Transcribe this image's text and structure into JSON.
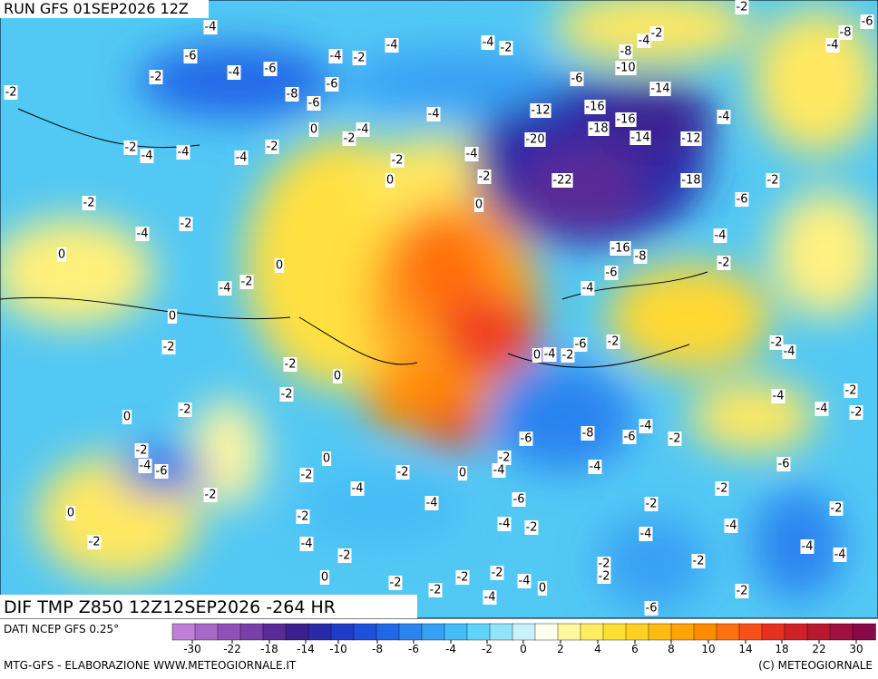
{
  "header": {
    "title": "RUN GFS 01SEP2026 12Z",
    "product": "DIF TMP Z850 12Z12SEP2026 -264 HR"
  },
  "map": {
    "labels": [
      -4,
      -6,
      -4,
      -6,
      -2,
      -2,
      -8,
      -6,
      -6,
      -4,
      -2,
      -4,
      -4,
      -2,
      -2,
      -4,
      -8,
      -10,
      -6,
      -14,
      -12,
      -16,
      -16,
      -18,
      -14,
      -12,
      -4,
      -20,
      -22,
      -18,
      -6,
      -2,
      -4,
      -4,
      -2,
      0,
      -2,
      -2,
      -4,
      -4,
      -4,
      -2,
      -4,
      -2,
      0,
      0,
      -2,
      -2,
      -4,
      0,
      0,
      -4,
      -2,
      0,
      -2,
      -2,
      0,
      -2,
      -2,
      0,
      -6,
      -8,
      -6,
      -4,
      -2,
      -6,
      -2,
      0,
      -4,
      -2,
      -4,
      -6,
      -16,
      -8,
      -2,
      -4,
      -2,
      -4,
      -4,
      -2,
      -4,
      -2,
      -6,
      -2,
      -2,
      -4,
      -4,
      -4,
      -2,
      -6,
      -2,
      -2,
      -4,
      -2,
      -2,
      -4,
      -2,
      -4,
      0,
      -2,
      0,
      -2,
      -4,
      -2,
      -4,
      -6,
      -4,
      -2,
      -2,
      -4,
      -6,
      0,
      -2,
      -2,
      -4,
      -2,
      0,
      -2,
      -2,
      -2,
      -2,
      -4,
      0,
      -4,
      -6,
      -8,
      -4,
      -2
    ]
  },
  "colorbar": {
    "ticks": [
      -30,
      -22,
      -18,
      -14,
      -10,
      -8,
      -6,
      -4,
      -2,
      0,
      2,
      4,
      6,
      8,
      10,
      14,
      18,
      22,
      30
    ],
    "colors": [
      "#c080d8",
      "#a868c8",
      "#9050b8",
      "#7840a8",
      "#5a2a96",
      "#3c2090",
      "#2a2aa8",
      "#1e3cc8",
      "#1e50dc",
      "#2068e8",
      "#2c84f0",
      "#38a0f4",
      "#44bcf6",
      "#60d4f8",
      "#90e4f8",
      "#c8f2fa",
      "#fffff0",
      "#fff6a0",
      "#ffec60",
      "#ffe030",
      "#ffd020",
      "#ffbc10",
      "#ffa400",
      "#ff8c00",
      "#ff7010",
      "#f85018",
      "#e83020",
      "#d02028",
      "#b81830",
      "#a01040",
      "#880848"
    ],
    "source": "DATI NCEP GFS 0.25°"
  },
  "footer": {
    "left": "MTG-GFS - ELABORAZIONE WWW.METEOGIORNALE.IT",
    "right": "(C) METEOGIORNALE"
  }
}
